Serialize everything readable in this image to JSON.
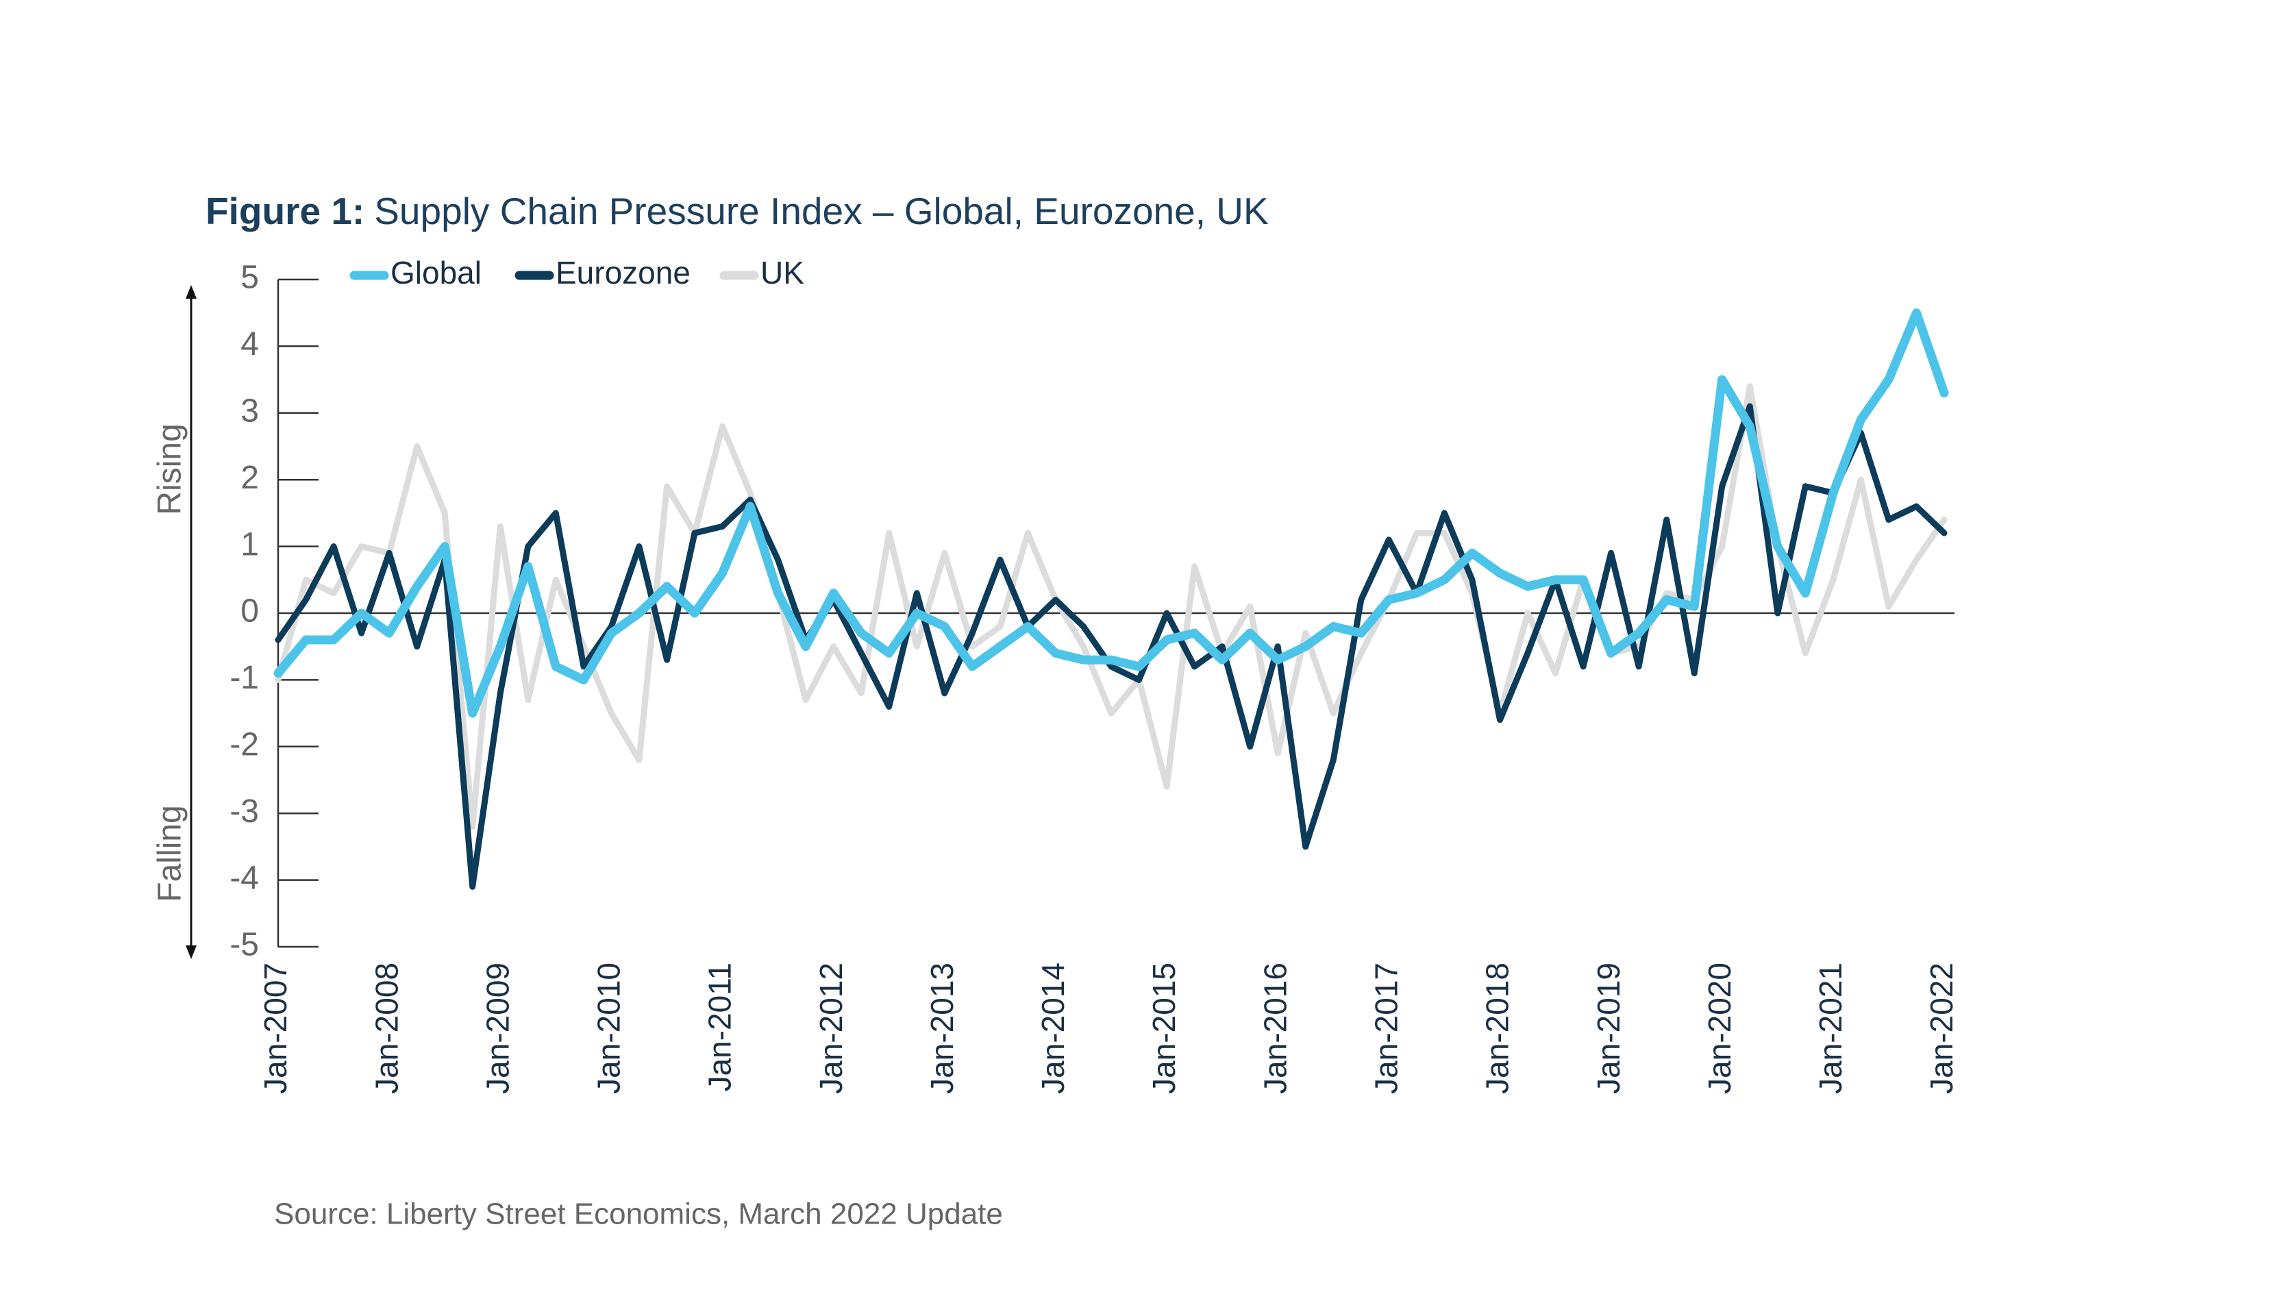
{
  "chart_data": {
    "type": "line",
    "title_label": "Figure 1:",
    "title": "Supply Chain Pressure Index – Global, Eurozone, UK",
    "annotations": [
      "Rising",
      "Falling"
    ],
    "source": "Source: Liberty Street Economics, March 2022 Update",
    "categories": [
      "Jan-2007",
      null,
      null,
      null,
      "Jan-2008",
      null,
      null,
      null,
      "Jan-2009",
      null,
      null,
      null,
      "Jan-2010",
      null,
      null,
      null,
      "Jan-2011",
      null,
      null,
      null,
      "Jan-2012",
      null,
      null,
      null,
      "Jan-2013",
      null,
      null,
      null,
      "Jan-2014",
      null,
      null,
      null,
      "Jan-2015",
      null,
      null,
      null,
      "Jan-2016",
      null,
      null,
      null,
      "Jan-2017",
      null,
      null,
      null,
      "Jan-2018",
      null,
      null,
      null,
      "Jan-2019",
      null,
      null,
      null,
      "Jan-2020",
      null,
      null,
      null,
      "Jan-2021",
      null,
      null,
      null,
      "Jan-2022"
    ],
    "ylim": [
      -5,
      5
    ],
    "yticks": [
      -5,
      -4,
      -3,
      -2,
      -1,
      0,
      1,
      2,
      3,
      4,
      5
    ],
    "series": [
      {
        "name": "Global",
        "color": "#4cc3e8",
        "values": [
          -0.9,
          -0.4,
          -0.4,
          0.0,
          -0.3,
          0.4,
          1.0,
          -1.5,
          -0.5,
          0.7,
          -0.8,
          -1.0,
          -0.3,
          0.0,
          0.4,
          0.0,
          0.6,
          1.6,
          0.3,
          -0.5,
          0.3,
          -0.3,
          -0.6,
          0.0,
          -0.2,
          -0.8,
          -0.5,
          -0.2,
          -0.6,
          -0.7,
          -0.7,
          -0.8,
          -0.4,
          -0.3,
          -0.7,
          -0.3,
          -0.7,
          -0.5,
          -0.2,
          -0.3,
          0.2,
          0.3,
          0.5,
          0.9,
          0.6,
          0.4,
          0.5,
          0.5,
          -0.6,
          -0.3,
          0.2,
          0.1,
          3.5,
          2.8,
          1.0,
          0.3,
          1.8,
          2.9,
          3.5,
          4.5,
          3.3
        ]
      },
      {
        "name": "Eurozone",
        "color": "#0d3b5a",
        "values": [
          -0.4,
          0.2,
          1.0,
          -0.3,
          0.9,
          -0.5,
          0.8,
          -4.1,
          -1.2,
          1.0,
          1.5,
          -0.8,
          -0.2,
          1.0,
          -0.7,
          1.2,
          1.3,
          1.7,
          0.8,
          -0.4,
          0.2,
          -0.6,
          -1.4,
          0.3,
          -1.2,
          -0.3,
          0.8,
          -0.2,
          0.2,
          -0.2,
          -0.8,
          -1.0,
          0.0,
          -0.8,
          -0.5,
          -2.0,
          -0.5,
          -3.5,
          -2.2,
          0.2,
          1.1,
          0.3,
          1.5,
          0.5,
          -1.6,
          -0.6,
          0.5,
          -0.8,
          0.9,
          -0.8,
          1.4,
          -0.9,
          1.9,
          3.1,
          0.0,
          1.9,
          1.8,
          2.7,
          1.4,
          1.6,
          1.2
        ]
      },
      {
        "name": "UK",
        "color": "#dcdcdc",
        "values": [
          -1.0,
          0.5,
          0.3,
          1.0,
          0.9,
          2.5,
          1.5,
          -3.2,
          1.3,
          -1.3,
          0.5,
          -0.5,
          -1.5,
          -2.2,
          1.9,
          1.2,
          2.8,
          1.8,
          0.3,
          -1.3,
          -0.5,
          -1.2,
          1.2,
          -0.5,
          0.9,
          -0.5,
          -0.2,
          1.2,
          0.2,
          -0.5,
          -1.5,
          -1.0,
          -2.6,
          0.7,
          -0.6,
          0.1,
          -2.1,
          -0.3,
          -1.5,
          -0.6,
          0.2,
          1.2,
          1.2,
          0.3,
          -1.5,
          0.0,
          -0.9,
          0.5,
          -0.6,
          -0.5,
          0.3,
          0.2,
          1.0,
          3.4,
          1.0,
          -0.6,
          0.5,
          2.0,
          0.1,
          0.8,
          1.4
        ]
      }
    ]
  }
}
